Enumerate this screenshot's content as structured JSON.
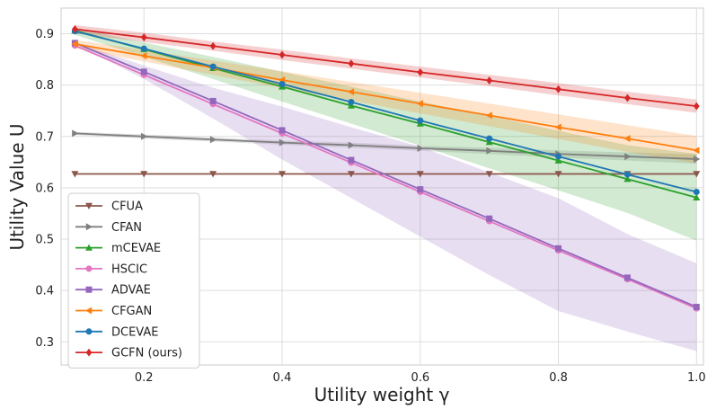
{
  "chart_data": {
    "type": "line",
    "title": "",
    "xlabel": "Utility weight γ",
    "ylabel": "Utility Value U",
    "xlim": [
      0.08,
      1.01
    ],
    "ylim": [
      0.255,
      0.95
    ],
    "xticks": [
      "0.2",
      "0.4",
      "0.6",
      "0.8",
      "1.0"
    ],
    "yticks": [
      "0.3",
      "0.4",
      "0.5",
      "0.6",
      "0.7",
      "0.8",
      "0.9"
    ],
    "grid": true,
    "legend_position": "bottom-left",
    "x": [
      0.1,
      0.2,
      0.3,
      0.4,
      0.5,
      0.6,
      0.7,
      0.8,
      0.9,
      1.0
    ],
    "series": [
      {
        "name": "CFUA",
        "color": "#8c564b",
        "marker": "triangle-down",
        "values": [
          0.627,
          0.627,
          0.627,
          0.627,
          0.627,
          0.627,
          0.627,
          0.627,
          0.627,
          0.627
        ]
      },
      {
        "name": "CFAN",
        "color": "#7f7f7f",
        "marker": "triangle-right",
        "values": [
          0.706,
          0.7,
          0.694,
          0.688,
          0.683,
          0.677,
          0.672,
          0.666,
          0.661,
          0.656
        ],
        "band": {
          "lo": [
            0.703,
            0.696,
            0.69,
            0.684,
            0.678,
            0.672,
            0.666,
            0.659,
            0.653,
            0.647
          ],
          "hi": [
            0.709,
            0.704,
            0.698,
            0.692,
            0.688,
            0.682,
            0.678,
            0.673,
            0.669,
            0.665
          ]
        }
      },
      {
        "name": "mCEVAE",
        "color": "#2ca02c",
        "marker": "triangle-up",
        "values": [
          0.906,
          0.87,
          0.833,
          0.797,
          0.76,
          0.725,
          0.689,
          0.653,
          0.617,
          0.581
        ],
        "band": {
          "lo": [
            0.898,
            0.855,
            0.812,
            0.768,
            0.725,
            0.682,
            0.638,
            0.595,
            0.551,
            0.497
          ],
          "hi": [
            0.912,
            0.883,
            0.855,
            0.826,
            0.797,
            0.768,
            0.74,
            0.711,
            0.683,
            0.666
          ]
        }
      },
      {
        "name": "HSCIC",
        "color": "#e377c2",
        "marker": "circle",
        "values": [
          0.877,
          0.82,
          0.763,
          0.706,
          0.649,
          0.592,
          0.535,
          0.478,
          0.422,
          0.365
        ]
      },
      {
        "name": "ADVAE",
        "color": "#9467bd",
        "marker": "square",
        "values": [
          0.882,
          0.826,
          0.769,
          0.712,
          0.654,
          0.597,
          0.54,
          0.482,
          0.425,
          0.368
        ],
        "band": {
          "lo": [
            0.88,
            0.812,
            0.735,
            0.655,
            0.58,
            0.505,
            0.43,
            0.36,
            0.32,
            0.282
          ],
          "hi": [
            0.884,
            0.838,
            0.795,
            0.758,
            0.718,
            0.68,
            0.63,
            0.58,
            0.51,
            0.453
          ]
        }
      },
      {
        "name": "CFGAN",
        "color": "#ff7f0e",
        "marker": "triangle-left",
        "values": [
          0.88,
          0.857,
          0.834,
          0.81,
          0.787,
          0.764,
          0.741,
          0.718,
          0.696,
          0.673
        ],
        "band": {
          "lo": [
            0.872,
            0.846,
            0.82,
            0.794,
            0.77,
            0.745,
            0.72,
            0.695,
            0.67,
            0.648
          ],
          "hi": [
            0.888,
            0.868,
            0.848,
            0.827,
            0.806,
            0.785,
            0.764,
            0.743,
            0.722,
            0.701
          ]
        }
      },
      {
        "name": "DCEVAE",
        "color": "#1f77b4",
        "marker": "circle",
        "values": [
          0.905,
          0.871,
          0.836,
          0.802,
          0.767,
          0.731,
          0.696,
          0.661,
          0.626,
          0.592
        ]
      },
      {
        "name": "GCFN (ours)",
        "color": "#d62728",
        "marker": "diamond",
        "values": [
          0.909,
          0.893,
          0.876,
          0.859,
          0.842,
          0.825,
          0.809,
          0.792,
          0.775,
          0.759
        ],
        "band": {
          "lo": [
            0.901,
            0.884,
            0.867,
            0.849,
            0.832,
            0.815,
            0.798,
            0.78,
            0.763,
            0.746
          ],
          "hi": [
            0.917,
            0.902,
            0.885,
            0.869,
            0.852,
            0.836,
            0.82,
            0.804,
            0.787,
            0.772
          ]
        }
      }
    ]
  }
}
